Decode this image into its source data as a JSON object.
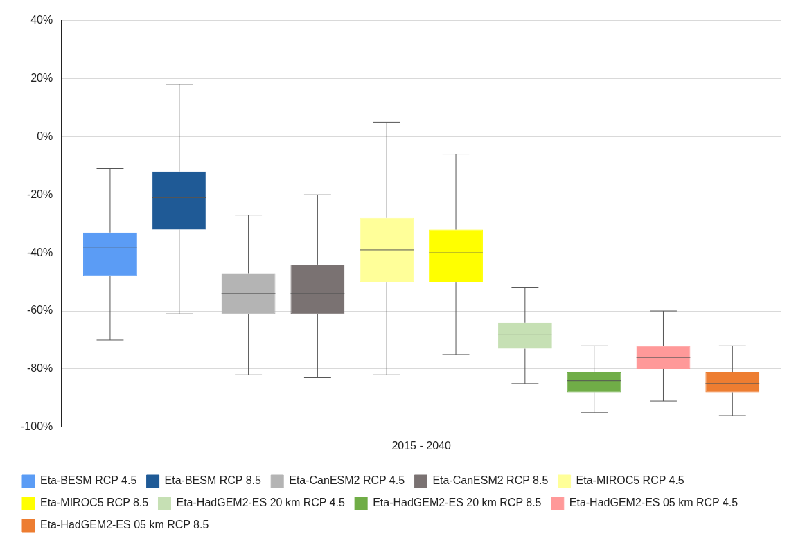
{
  "chart_data": {
    "type": "box",
    "categories": [
      "2015 - 2040"
    ],
    "ylim": [
      -100,
      40
    ],
    "yticks": [
      {
        "value": -100,
        "label": "-100%"
      },
      {
        "value": -80,
        "label": "-80%"
      },
      {
        "value": -60,
        "label": "-60%"
      },
      {
        "value": -40,
        "label": "-40%"
      },
      {
        "value": -20,
        "label": "-20%"
      },
      {
        "value": 0,
        "label": "0%"
      },
      {
        "value": 20,
        "label": "20%"
      },
      {
        "value": 40,
        "label": "40%"
      }
    ],
    "grid": "y",
    "legend": "bottom",
    "series": [
      {
        "name": "Eta-BESM RCP 4.5",
        "color": "#5b9cf5",
        "boxes": [
          {
            "low": -70,
            "q1": -48,
            "median": -38,
            "q3": -33,
            "high": -11
          }
        ]
      },
      {
        "name": "Eta-BESM RCP 8.5",
        "color": "#1f5a96",
        "boxes": [
          {
            "low": -61,
            "q1": -32,
            "median": -21,
            "q3": -12,
            "high": 18
          }
        ]
      },
      {
        "name": "Eta-CanESM2 RCP 4.5",
        "color": "#b4b4b4",
        "boxes": [
          {
            "low": -82,
            "q1": -61,
            "median": -54,
            "q3": -47,
            "high": -27
          }
        ]
      },
      {
        "name": "Eta-CanESM2 RCP 8.5",
        "color": "#7a7272",
        "boxes": [
          {
            "low": -83,
            "q1": -61,
            "median": -54,
            "q3": -44,
            "high": -20
          }
        ]
      },
      {
        "name": "Eta-MIROC5 RCP 4.5",
        "color": "#ffff99",
        "boxes": [
          {
            "low": -82,
            "q1": -50,
            "median": -39,
            "q3": -28,
            "high": 5
          }
        ]
      },
      {
        "name": "Eta-MIROC5 RCP 8.5",
        "color": "#ffff00",
        "boxes": [
          {
            "low": -75,
            "q1": -50,
            "median": -40,
            "q3": -32,
            "high": -6
          }
        ]
      },
      {
        "name": "Eta-HadGEM2-ES 20 km RCP 4.5",
        "color": "#c6e0b4",
        "boxes": [
          {
            "low": -85,
            "q1": -73,
            "median": -68,
            "q3": -64,
            "high": -52
          }
        ]
      },
      {
        "name": "Eta-HadGEM2-ES 20 km RCP 8.5",
        "color": "#70ad47",
        "boxes": [
          {
            "low": -95,
            "q1": -88,
            "median": -84,
            "q3": -81,
            "high": -72
          }
        ]
      },
      {
        "name": "Eta-HadGEM2-ES 05 km RCP 4.5",
        "color": "#ff9999",
        "boxes": [
          {
            "low": -91,
            "q1": -80,
            "median": -76,
            "q3": -72,
            "high": -60
          }
        ]
      },
      {
        "name": "Eta-HadGEM2-ES 05 km RCP 8.5",
        "color": "#ed7d31",
        "boxes": [
          {
            "low": -96,
            "q1": -88,
            "median": -85,
            "q3": -81,
            "high": -72
          }
        ]
      }
    ]
  }
}
